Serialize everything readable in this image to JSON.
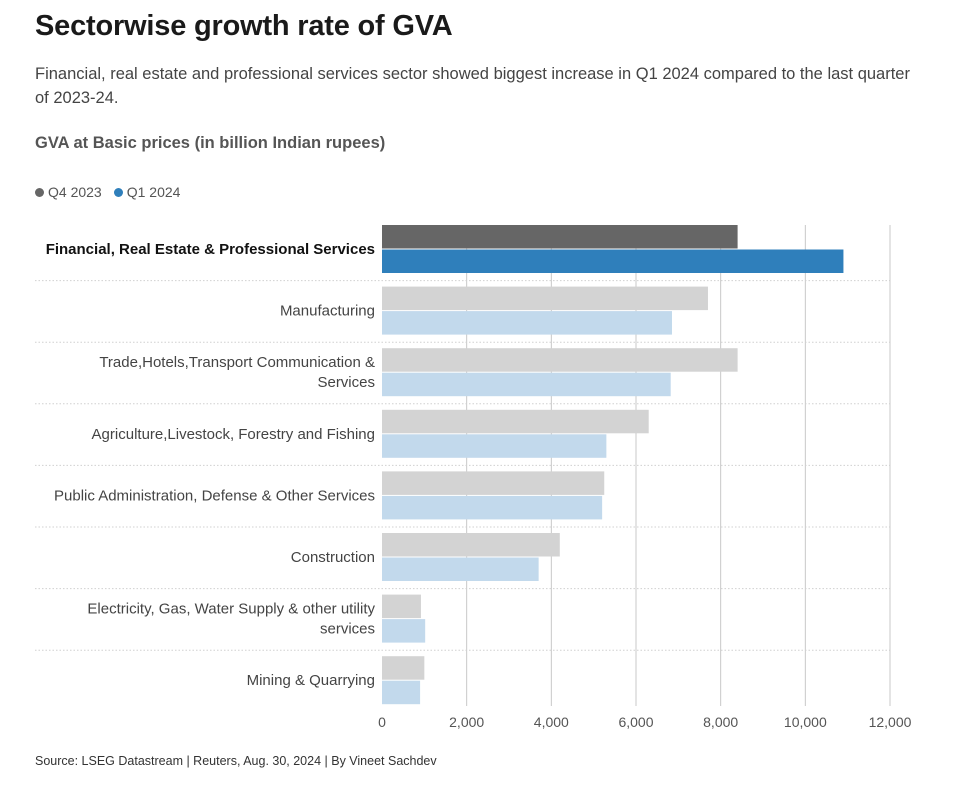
{
  "header": {
    "title": "Sectorwise growth rate of GVA",
    "subtitle": "Financial, real estate and professional services sector showed biggest increase in Q1 2024 compared to the last quarter of 2023-24.",
    "chart_heading": "GVA at Basic prices (in billion Indian rupees)"
  },
  "legend": {
    "items": [
      {
        "label": "Q4 2023",
        "color": "#666666"
      },
      {
        "label": "Q1 2024",
        "color": "#2f7fbb"
      }
    ]
  },
  "footer": {
    "source": "Source: LSEG Datastream | Reuters, Aug. 30, 2024 | By Vineet Sachdev"
  },
  "colors": {
    "highlight_q4": "#666666",
    "highlight_q1": "#2f7fbb",
    "muted_q4": "#d3d3d3",
    "muted_q1": "#c2d9ec",
    "grid": "#c8c8c8"
  },
  "chart_data": {
    "type": "bar",
    "orientation": "horizontal",
    "title": "GVA at Basic prices (in billion Indian rupees)",
    "categories": [
      {
        "lines": [
          "Financial, Real Estate & Professional Services"
        ],
        "highlight": true
      },
      {
        "lines": [
          "Manufacturing"
        ],
        "highlight": false
      },
      {
        "lines": [
          "Trade,Hotels,Transport Communication &",
          "Services"
        ],
        "highlight": false
      },
      {
        "lines": [
          "Agriculture,Livestock, Forestry and Fishing"
        ],
        "highlight": false
      },
      {
        "lines": [
          "Public Administration, Defense & Other Services"
        ],
        "highlight": false
      },
      {
        "lines": [
          "Construction"
        ],
        "highlight": false
      },
      {
        "lines": [
          "Electricity, Gas, Water Supply & other utility",
          "services"
        ],
        "highlight": false
      },
      {
        "lines": [
          "Mining & Quarrying"
        ],
        "highlight": false
      }
    ],
    "series": [
      {
        "name": "Q4 2023",
        "values": [
          8400,
          7700,
          8400,
          6300,
          5250,
          4200,
          920,
          1000
        ]
      },
      {
        "name": "Q1 2024",
        "values": [
          10900,
          6850,
          6820,
          5300,
          5200,
          3700,
          1020,
          900
        ]
      }
    ],
    "xlim": [
      0,
      12000
    ],
    "xticks": [
      {
        "value": 0,
        "label": "0"
      },
      {
        "value": 2000,
        "label": "2,000"
      },
      {
        "value": 4000,
        "label": "4,000"
      },
      {
        "value": 6000,
        "label": "6,000"
      },
      {
        "value": 8000,
        "label": "8,000"
      },
      {
        "value": 10000,
        "label": "10,000"
      },
      {
        "value": 12000,
        "label": "12,000"
      }
    ],
    "grid": true,
    "legend_position": "top-left"
  }
}
